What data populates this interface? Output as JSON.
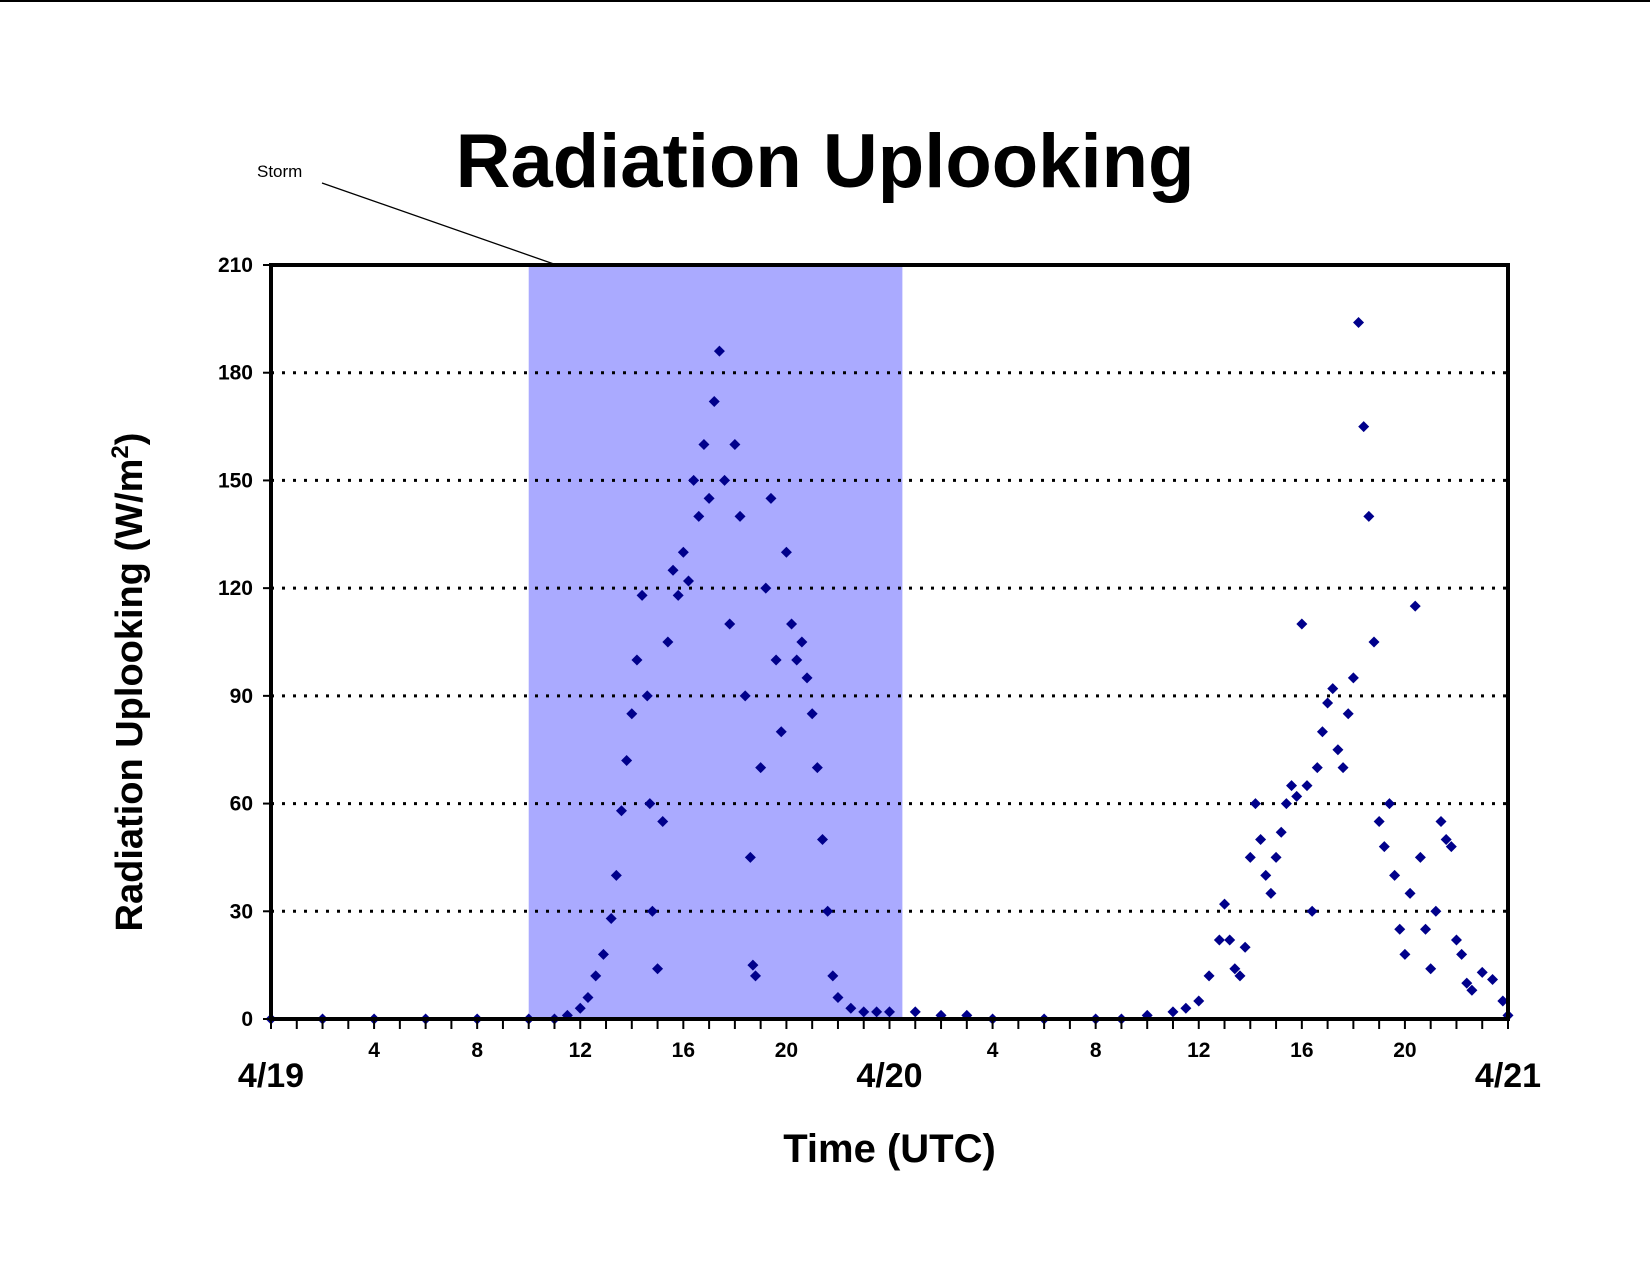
{
  "chart_data": {
    "type": "scatter",
    "title": "Radiation Uplooking",
    "xlabel": "Time (UTC)",
    "ylabel": "Radiation Uplooking (W/m",
    "ylabel_superscript": "2",
    "ylabel_close": ")",
    "x_unit": "hours since 4/19 00 UTC",
    "xlim": [
      0,
      48
    ],
    "ylim": [
      0,
      210
    ],
    "y_ticks": [
      0,
      30,
      60,
      90,
      120,
      150,
      180,
      210
    ],
    "x_minor_ticks": [
      4,
      8,
      12,
      16,
      20,
      28,
      32,
      36,
      40,
      44
    ],
    "x_minor_labels": [
      "4",
      "8",
      "12",
      "16",
      "20",
      "4",
      "8",
      "12",
      "16",
      "20"
    ],
    "x_major_ticks": [
      0,
      24,
      48
    ],
    "x_major_labels": [
      "4/19",
      "4/20",
      "4/21"
    ],
    "grid": "horizontal dotted",
    "marker": "diamond",
    "marker_color": "#00008B",
    "annotation": {
      "label": "Storm",
      "x_start": 10,
      "x_end": 24.5,
      "fill_color": "#aaaaff"
    },
    "series": [
      {
        "name": "",
        "points": [
          [
            0,
            0
          ],
          [
            2,
            0
          ],
          [
            4,
            0
          ],
          [
            6,
            0
          ],
          [
            8,
            0
          ],
          [
            10,
            0
          ],
          [
            11,
            0
          ],
          [
            11.5,
            1
          ],
          [
            12,
            3
          ],
          [
            12.3,
            6
          ],
          [
            12.6,
            12
          ],
          [
            12.9,
            18
          ],
          [
            13.2,
            28
          ],
          [
            13.4,
            40
          ],
          [
            13.6,
            58
          ],
          [
            13.8,
            72
          ],
          [
            14,
            85
          ],
          [
            14.2,
            100
          ],
          [
            14.4,
            118
          ],
          [
            14.6,
            90
          ],
          [
            14.7,
            60
          ],
          [
            14.8,
            30
          ],
          [
            15,
            14
          ],
          [
            15.2,
            55
          ],
          [
            15.4,
            105
          ],
          [
            15.6,
            125
          ],
          [
            15.8,
            118
          ],
          [
            16,
            130
          ],
          [
            16.2,
            122
          ],
          [
            16.4,
            150
          ],
          [
            16.6,
            140
          ],
          [
            16.8,
            160
          ],
          [
            17,
            145
          ],
          [
            17.2,
            172
          ],
          [
            17.4,
            186
          ],
          [
            17.6,
            150
          ],
          [
            17.8,
            110
          ],
          [
            18,
            160
          ],
          [
            18.2,
            140
          ],
          [
            18.4,
            90
          ],
          [
            18.6,
            45
          ],
          [
            18.7,
            15
          ],
          [
            18.8,
            12
          ],
          [
            19,
            70
          ],
          [
            19.2,
            120
          ],
          [
            19.4,
            145
          ],
          [
            19.6,
            100
          ],
          [
            19.8,
            80
          ],
          [
            20,
            130
          ],
          [
            20.2,
            110
          ],
          [
            20.4,
            100
          ],
          [
            20.6,
            105
          ],
          [
            20.8,
            95
          ],
          [
            21,
            85
          ],
          [
            21.2,
            70
          ],
          [
            21.4,
            50
          ],
          [
            21.6,
            30
          ],
          [
            21.8,
            12
          ],
          [
            22,
            6
          ],
          [
            22.5,
            3
          ],
          [
            23,
            2
          ],
          [
            23.5,
            2
          ],
          [
            24,
            2
          ],
          [
            25,
            2
          ],
          [
            26,
            1
          ],
          [
            27,
            1
          ],
          [
            28,
            0
          ],
          [
            30,
            0
          ],
          [
            32,
            0
          ],
          [
            33,
            0
          ],
          [
            34,
            1
          ],
          [
            35,
            2
          ],
          [
            35.5,
            3
          ],
          [
            36,
            5
          ],
          [
            36.4,
            12
          ],
          [
            36.8,
            22
          ],
          [
            37,
            32
          ],
          [
            37.2,
            22
          ],
          [
            37.4,
            14
          ],
          [
            37.6,
            12
          ],
          [
            37.8,
            20
          ],
          [
            38,
            45
          ],
          [
            38.2,
            60
          ],
          [
            38.4,
            50
          ],
          [
            38.6,
            40
          ],
          [
            38.8,
            35
          ],
          [
            39,
            45
          ],
          [
            39.2,
            52
          ],
          [
            39.4,
            60
          ],
          [
            39.6,
            65
          ],
          [
            39.8,
            62
          ],
          [
            40,
            110
          ],
          [
            40.2,
            65
          ],
          [
            40.4,
            30
          ],
          [
            40.6,
            70
          ],
          [
            40.8,
            80
          ],
          [
            41,
            88
          ],
          [
            41.2,
            92
          ],
          [
            41.4,
            75
          ],
          [
            41.6,
            70
          ],
          [
            41.8,
            85
          ],
          [
            42,
            95
          ],
          [
            42.2,
            194
          ],
          [
            42.4,
            165
          ],
          [
            42.6,
            140
          ],
          [
            42.8,
            105
          ],
          [
            43,
            55
          ],
          [
            43.2,
            48
          ],
          [
            43.4,
            60
          ],
          [
            43.6,
            40
          ],
          [
            43.8,
            25
          ],
          [
            44,
            18
          ],
          [
            44.2,
            35
          ],
          [
            44.4,
            115
          ],
          [
            44.6,
            45
          ],
          [
            44.8,
            25
          ],
          [
            45,
            14
          ],
          [
            45.2,
            30
          ],
          [
            45.4,
            55
          ],
          [
            45.6,
            50
          ],
          [
            45.8,
            48
          ],
          [
            46,
            22
          ],
          [
            46.2,
            18
          ],
          [
            46.4,
            10
          ],
          [
            46.6,
            8
          ],
          [
            47,
            13
          ],
          [
            47.4,
            11
          ],
          [
            47.8,
            5
          ],
          [
            48,
            1
          ]
        ]
      }
    ]
  }
}
